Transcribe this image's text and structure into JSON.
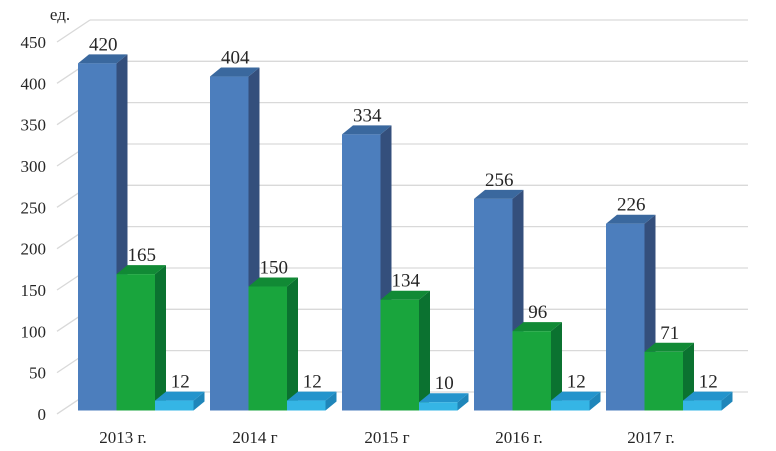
{
  "page": {
    "background": "#ffffff",
    "text_color": "#262626",
    "gridline_color": "#d9d9d9"
  },
  "chart_data": {
    "type": "bar",
    "projection": "3d",
    "title": "",
    "ylabel": "ед.",
    "xlabel": "",
    "grid": true,
    "legend": "none",
    "value_labels": true,
    "ylim": [
      0,
      450
    ],
    "yticks": [
      0,
      50,
      100,
      150,
      200,
      250,
      300,
      350,
      400,
      450
    ],
    "categories": [
      "2013 г.",
      "2014 г",
      "2015 г",
      "2016 г.",
      "2017 г."
    ],
    "series": [
      {
        "name": "blue",
        "values": [
          420,
          404,
          334,
          256,
          226
        ],
        "colors": {
          "front": "#4c7ebd",
          "top": "#3a689e",
          "side": "#344f7c"
        }
      },
      {
        "name": "green",
        "values": [
          165,
          150,
          134,
          96,
          71
        ],
        "colors": {
          "front": "#19a53d",
          "top": "#118a35",
          "side": "#0b7230"
        }
      },
      {
        "name": "cyan",
        "values": [
          12,
          12,
          10,
          12,
          12
        ],
        "colors": {
          "front": "#35b5e5",
          "top": "#2494cc",
          "side": "#1f86ba"
        }
      }
    ]
  }
}
